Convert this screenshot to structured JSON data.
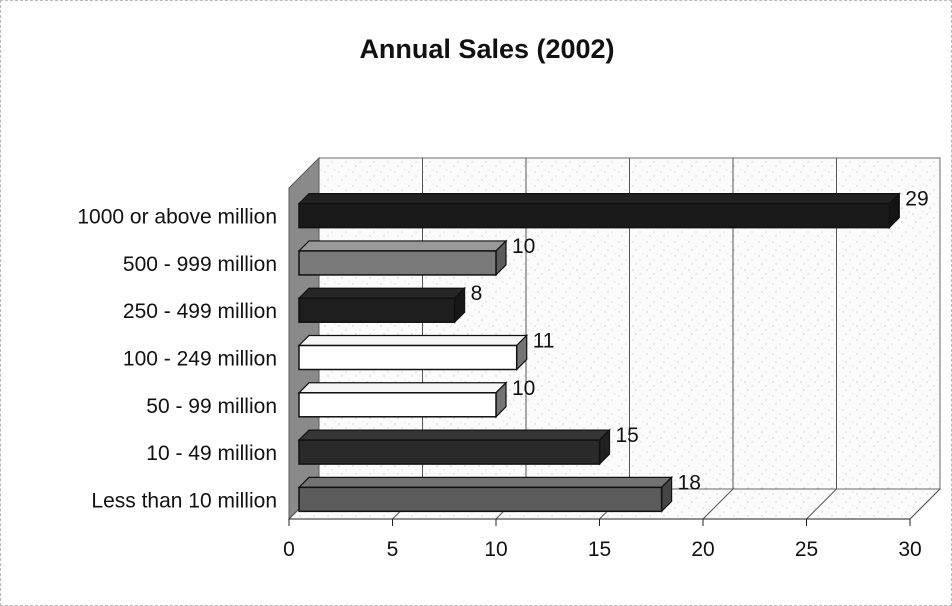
{
  "chart_data": {
    "type": "bar",
    "orientation": "horizontal",
    "title": "Annual Sales (2002)",
    "xlabel": "",
    "ylabel": "",
    "categories": [
      "1000 or above million",
      "500 - 999 million",
      "250 - 499 million",
      "100 - 249 million",
      "50 - 99 million",
      "10 - 49 million",
      "Less than 10 million"
    ],
    "values": [
      29,
      10,
      8,
      11,
      10,
      15,
      18
    ],
    "bar_colors": [
      "#1a1a1a",
      "#7a7a7a",
      "#1e1e1e",
      "#ffffff",
      "#ffffff",
      "#2a2a2a",
      "#5c5c5c"
    ],
    "xlim": [
      0,
      30
    ],
    "xticks": [
      "0",
      "5",
      "10",
      "15",
      "20",
      "25",
      "30"
    ],
    "grid": true,
    "legend": "none",
    "style": "3d"
  }
}
